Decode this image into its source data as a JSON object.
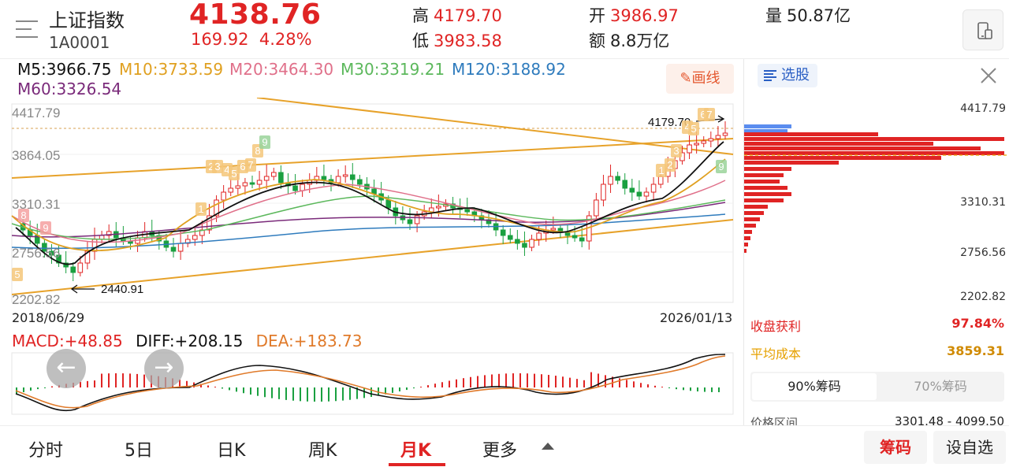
{
  "header": {
    "name": "上证指数",
    "code": "1A0001",
    "price": "4138.76",
    "change": "169.92",
    "change_pct": "4.28%",
    "high_label": "高",
    "high": "4179.70",
    "low_label": "低",
    "low": "3983.58",
    "open_label": "开",
    "open": "3986.97",
    "amount_label": "额",
    "amount": "8.8万亿",
    "volume_label": "量",
    "volume": "50.87亿",
    "icon_menu": "menu-icon",
    "icon_phone": "phone-landscape-icon"
  },
  "ma_legend": {
    "m5": "M5:3966.75",
    "m10": "M10:3733.59",
    "m20": "M20:3464.30",
    "m30": "M30:3319.21",
    "m120": "M120:3188.92",
    "m60": "M60:3326.54",
    "colors": {
      "m5": "#111111",
      "m10": "#e0a020",
      "m20": "#e0708a",
      "m30": "#5cb85c",
      "m60": "#7a2a7a",
      "m120": "#2e7bbd"
    }
  },
  "draw_button": "画线",
  "chart": {
    "y_labels": [
      "4417.79",
      "3864.05",
      "3310.31",
      "2756.56",
      "2202.82"
    ],
    "high_marker": "4179.70",
    "low_marker": "2440.91",
    "start_date": "2018/06/29",
    "end_date": "2026/01/13",
    "up_color": "#e02424",
    "down_color": "#1aa040"
  },
  "macd": {
    "macd": "MACD:+48.85",
    "diff": "DIFF:+208.15",
    "dea": "DEA:+183.73"
  },
  "nav": {
    "prev": "←",
    "next": "→"
  },
  "right_panel": {
    "select_label": "选股",
    "price_labels": [
      "4417.79",
      "3310.31",
      "2756.56",
      "2202.82"
    ],
    "profit_label": "收盘获利",
    "profit_value": "97.84%",
    "cost_label": "平均成本",
    "cost_value": "3859.31",
    "tab90": "90%筹码",
    "tab70": "70%筹码",
    "range_label": "价格区间",
    "range_value": "3301.48 - 4099.50"
  },
  "tabs": [
    "分时",
    "5日",
    "日K",
    "周K",
    "月K",
    "更多"
  ],
  "active_tab": "月K",
  "buttons": {
    "chip": "筹码",
    "add": "设自选"
  }
}
